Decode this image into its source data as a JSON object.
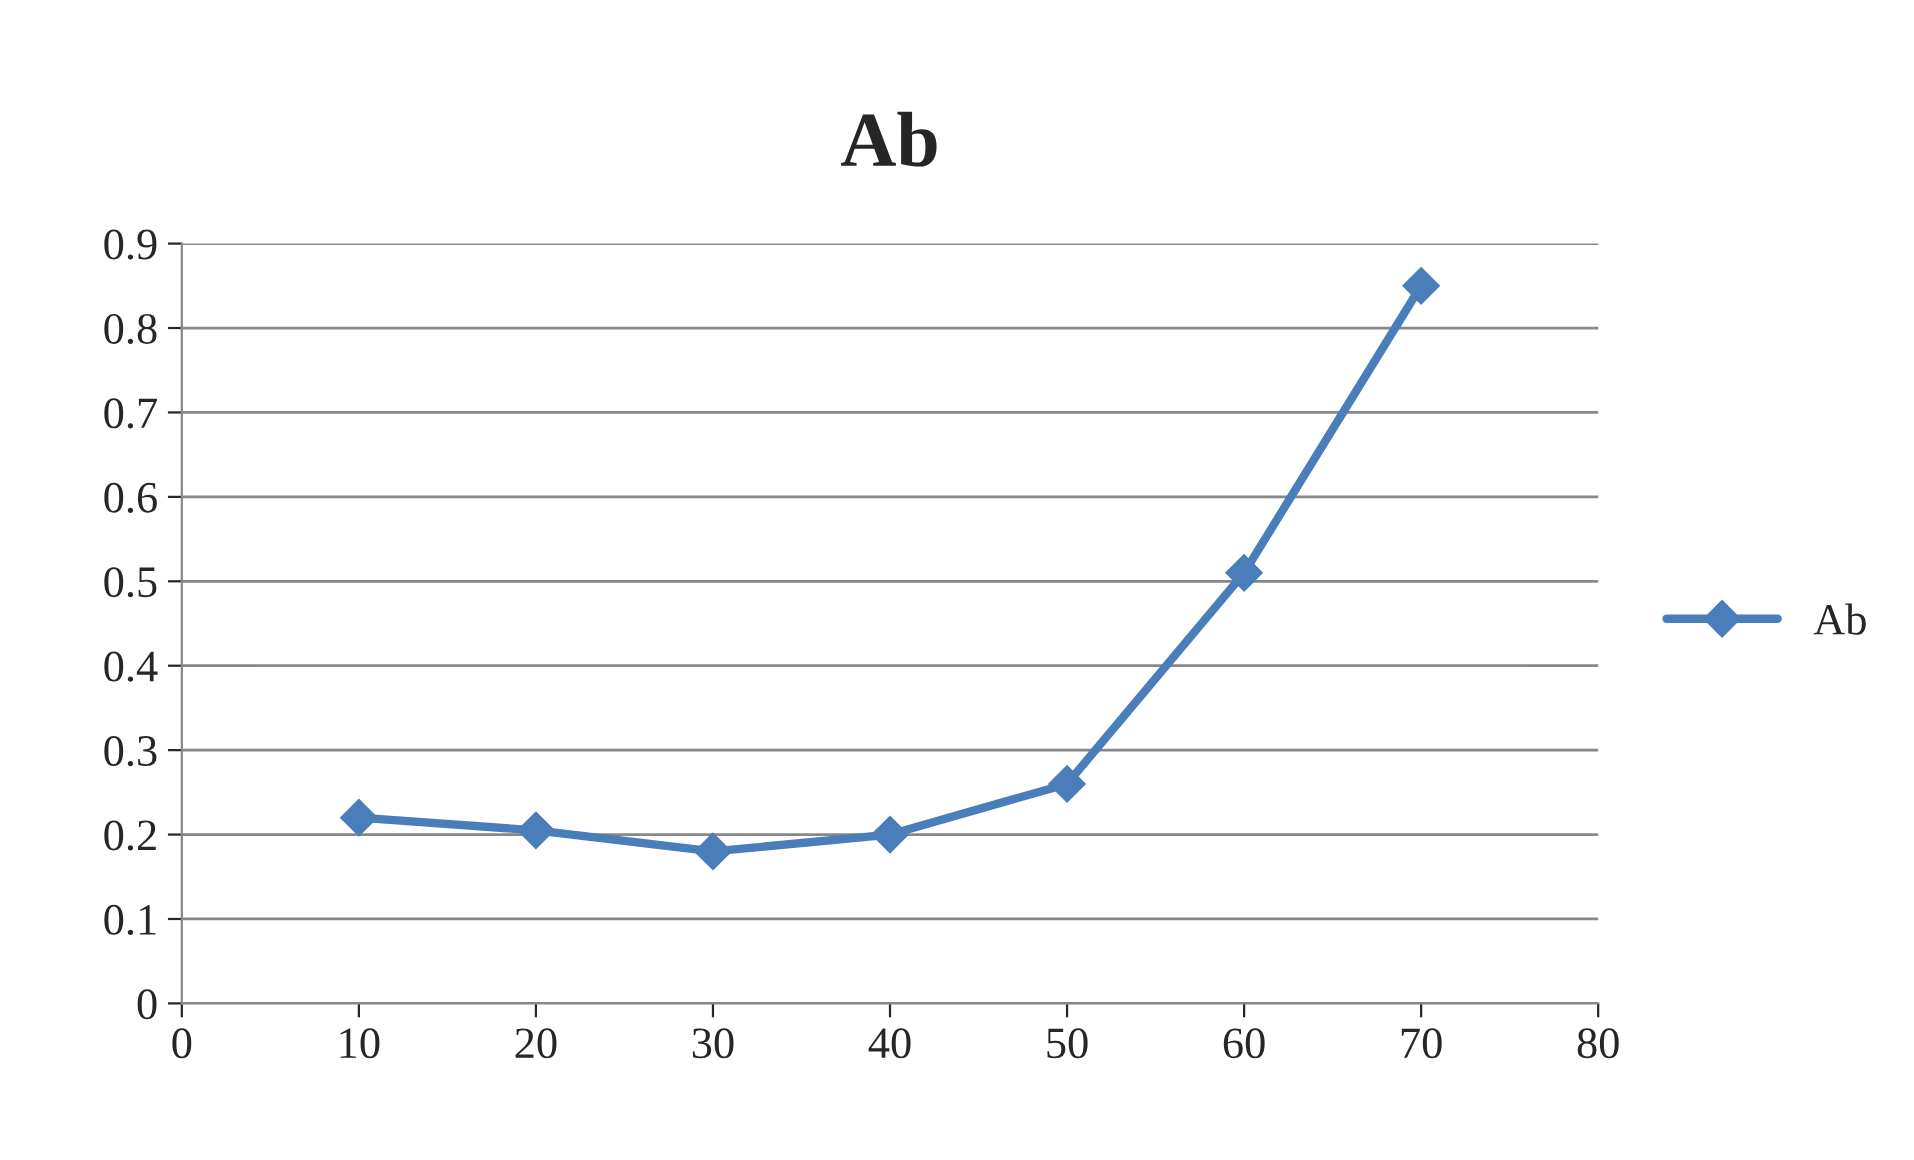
{
  "chart_data": {
    "type": "line",
    "title": "Ab",
    "x": [
      10,
      20,
      30,
      40,
      50,
      60,
      70
    ],
    "series": [
      {
        "name": "Ab",
        "color": "#4a7ebb",
        "values": [
          0.22,
          0.205,
          0.18,
          0.2,
          0.26,
          0.51,
          0.85
        ]
      }
    ],
    "xlim": [
      0,
      80
    ],
    "xticks": [
      0,
      10,
      20,
      30,
      40,
      50,
      60,
      70,
      80
    ],
    "ylim": [
      0,
      0.9
    ],
    "yticks": [
      0,
      0.1,
      0.2,
      0.3,
      0.4,
      0.5,
      0.6,
      0.7,
      0.8,
      0.9
    ],
    "grid": "y",
    "legend": "right",
    "marker": "diamond",
    "line_style": "solid"
  }
}
